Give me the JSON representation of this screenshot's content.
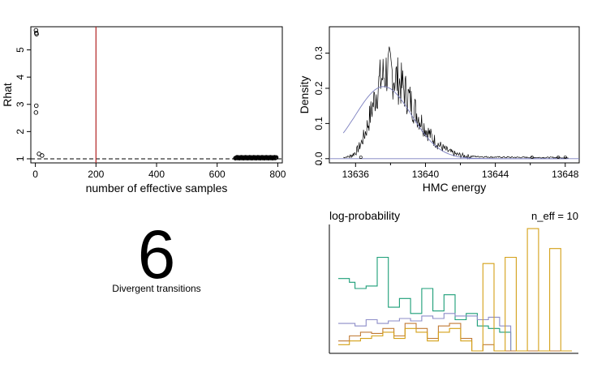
{
  "chart_data": [
    {
      "type": "scatter",
      "xlabel": "number of effective samples",
      "ylabel": "Rhat",
      "xlim": [
        -15,
        815
      ],
      "ylim": [
        0.85,
        5.85
      ],
      "x_ticks": [
        0,
        200,
        400,
        600,
        800
      ],
      "y_ticks": [
        1,
        2,
        3,
        4,
        5
      ],
      "reference_line_y": 1,
      "reference_line_x": 200,
      "reference_line_x_color": "#b22222",
      "points": [
        [
          2,
          5.72
        ],
        [
          3,
          5.62
        ],
        [
          4,
          5.58
        ],
        [
          3,
          2.95
        ],
        [
          2,
          2.7
        ],
        [
          12,
          1.18
        ],
        [
          22,
          1.12
        ]
      ],
      "cluster": {
        "x_range": [
          660,
          795
        ],
        "y": 1.04,
        "count": 70
      },
      "grid": false
    },
    {
      "type": "line",
      "xlabel": "HMC energy",
      "ylabel": "Density",
      "xlim": [
        13634.5,
        13648.8
      ],
      "ylim": [
        -0.012,
        0.375
      ],
      "x_ticks": [
        13636,
        13640,
        13644,
        13648
      ],
      "y_ticks": [
        0.0,
        0.1,
        0.2,
        0.3
      ],
      "peak_x": 13637.7,
      "peak_density": 0.36,
      "smooth_curve_color": "#7b7fbf",
      "hist_color": "#000000",
      "grid": false
    },
    {
      "type": "number",
      "value": "6",
      "label": "Divergent transitions"
    },
    {
      "type": "line",
      "title": "log-probability",
      "annotation": "n_eff = 10",
      "colors": [
        "#1b9e77",
        "#8c8cc8",
        "#c07a34",
        "#d4a017"
      ],
      "series": [
        {
          "name": "",
          "values": [
            0.58,
            0.58,
            0.55,
            0.5,
            0.5,
            0.52,
            0.52,
            0.75,
            0.75,
            0.35,
            0.35,
            0.42,
            0.42,
            0.3,
            0.3,
            0.5,
            0.5,
            0.32,
            0.32,
            0.45,
            0.45,
            0.25,
            0.25,
            0.3,
            0.3,
            0.2,
            0.2,
            0.18,
            0.18,
            0.15,
            0.15,
            0.0,
            0.0,
            0.0,
            0.0,
            0.0,
            0.0,
            0.0,
            0.0,
            0.0,
            0.0,
            0.0
          ]
        },
        {
          "name": "",
          "values": [
            0.22,
            0.22,
            0.22,
            0.2,
            0.2,
            0.25,
            0.25,
            0.22,
            0.22,
            0.24,
            0.24,
            0.26,
            0.26,
            0.24,
            0.24,
            0.28,
            0.28,
            0.26,
            0.26,
            0.3,
            0.3,
            0.28,
            0.28,
            0.28,
            0.28,
            0.25,
            0.25,
            0.27,
            0.27,
            0.2,
            0.2,
            0.0,
            0.0,
            0.0,
            0.0,
            0.0,
            0.0,
            0.0,
            0.0,
            0.0,
            0.0,
            0.0
          ]
        },
        {
          "name": "",
          "values": [
            0.08,
            0.08,
            0.12,
            0.12,
            0.15,
            0.15,
            0.14,
            0.14,
            0.18,
            0.18,
            0.12,
            0.12,
            0.22,
            0.22,
            0.18,
            0.18,
            0.1,
            0.1,
            0.2,
            0.2,
            0.22,
            0.22,
            0.1,
            0.1,
            0.0,
            0.0,
            0.05,
            0.05,
            0.0,
            0.0,
            0.0,
            0.0,
            0.0,
            0.0,
            0.0,
            0.0,
            0.0,
            0.0,
            0.0,
            0.0,
            0.0,
            0.0
          ]
        },
        {
          "name": "",
          "values": [
            0.05,
            0.05,
            0.08,
            0.08,
            0.1,
            0.1,
            0.12,
            0.12,
            0.15,
            0.15,
            0.1,
            0.1,
            0.18,
            0.18,
            0.15,
            0.15,
            0.08,
            0.08,
            0.15,
            0.15,
            0.18,
            0.18,
            0.08,
            0.08,
            0.0,
            0.0,
            0.7,
            0.7,
            0.0,
            0.0,
            0.75,
            0.75,
            0.0,
            0.0,
            0.98,
            0.98,
            0.0,
            0.0,
            0.82,
            0.82,
            0.0,
            0.0
          ]
        }
      ]
    }
  ]
}
